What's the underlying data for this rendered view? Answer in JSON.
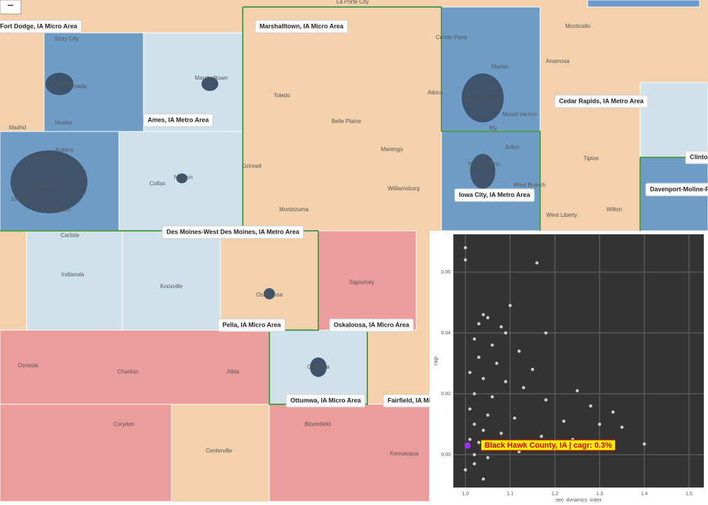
{
  "map": {
    "zoom_out": "−",
    "area_labels": [
      "Fort Dodge, IA Micro Area",
      "Marshalltown, IA Micro Area",
      "Ames, IA Metro Area",
      "Cedar Rapids, IA Metro Area",
      "Clinton, IA Micro Area",
      "Davenport-Moline-Rock Island, IA-IL Metro Area",
      "Iowa City, IA Metro Area",
      "Des Moines-West Des Moines, IA Metro Area",
      "Pella, IA Micro Area",
      "Oskaloosa, IA Micro Area",
      "Ottumwa, IA Micro Area",
      "Fairfield, IA Micro Area"
    ],
    "towns": [
      "La Porte City",
      "Story City",
      "Nevada",
      "Ames",
      "Huxley",
      "Madrid",
      "Marshalltown",
      "Toledo",
      "Belle Plaine",
      "Center Point",
      "Marion",
      "Cedar Rapids",
      "Atkins",
      "Mount Vernon",
      "Ely",
      "Monticello",
      "Anamosa",
      "Solon",
      "North Liberty",
      "West Branch",
      "Tipton",
      "Wilton",
      "West Liberty",
      "Marengo",
      "Williamsburg",
      "Montezuma",
      "Grinnell",
      "Newton",
      "Colfax",
      "Polk City",
      "Ankeny",
      "Johnston",
      "Urbandale",
      "Des Moines",
      "Carlisle",
      "Indianola",
      "Knoxville",
      "Oskaloosa",
      "Sigourney",
      "Ottumwa",
      "Chariton",
      "Albia",
      "Osceola",
      "Corydon",
      "Centerville",
      "Bloomfield",
      "Keosauqua"
    ]
  },
  "chart_data": {
    "type": "scatter",
    "x_label": "geo_dynamics_index",
    "y_label": "cagr",
    "color": "#cccccc",
    "x": [
      1.0,
      1.0,
      1.16,
      1.1,
      1.04,
      1.03,
      1.05,
      1.08,
      1.09,
      1.18,
      1.02,
      1.06,
      1.12,
      1.03,
      1.07,
      1.15,
      1.01,
      1.04,
      1.09,
      1.13,
      1.25,
      1.02,
      1.06,
      1.18,
      1.28,
      1.33,
      1.01,
      1.05,
      1.11,
      1.22,
      1.3,
      1.35,
      1.02,
      1.04,
      1.08,
      1.17,
      1.24,
      1.4,
      1.01,
      1.03,
      1.06,
      1.12,
      1.02,
      1.05,
      1.0,
      1.04,
      1.02,
      1.09
    ],
    "y": [
      0.068,
      0.064,
      0.063,
      0.049,
      0.046,
      0.043,
      0.045,
      0.042,
      0.04,
      0.04,
      0.038,
      0.036,
      0.034,
      0.032,
      0.03,
      0.028,
      0.027,
      0.025,
      0.024,
      0.022,
      0.021,
      0.02,
      0.019,
      0.018,
      0.016,
      0.014,
      0.015,
      0.013,
      0.012,
      0.011,
      0.01,
      0.009,
      0.01,
      0.008,
      0.007,
      0.006,
      0.005,
      0.0035,
      0.005,
      0.004,
      0.002,
      0.001,
      0.0,
      -0.001,
      -0.005,
      -0.008,
      -0.003,
      0.003
    ],
    "highlight": {
      "x": 1.005,
      "y": 0.003,
      "color": "#9b30ff",
      "label": "Black Hawk County, IA | cagr:  0.3%"
    },
    "xlim": [
      0.973,
      1.533
    ],
    "ylim": [
      -0.0108,
      0.0724
    ],
    "xticks": [
      {
        "value": 1,
        "label": "1.0"
      },
      {
        "value": 1.1,
        "label": "1.1"
      },
      {
        "value": 1.2,
        "label": "1.2"
      },
      {
        "value": 1.3,
        "label": "1.3"
      },
      {
        "value": 1.4,
        "label": "1.4"
      },
      {
        "value": 1.5,
        "label": "1.5"
      }
    ],
    "yticks": [
      {
        "value": 0,
        "label": "0.00"
      },
      {
        "value": 0.02,
        "label": "0.02"
      },
      {
        "value": 0.04,
        "label": "0.04"
      },
      {
        "value": 0.06,
        "label": "0.06"
      }
    ],
    "grid": true
  }
}
